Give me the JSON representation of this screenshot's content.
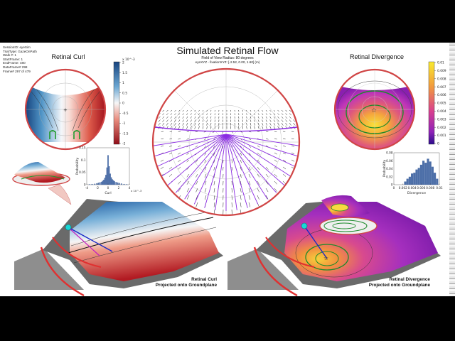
{
  "title": "Simulated Retinal Flow",
  "subtitle1": "Field of View Radius: 80 degrees",
  "subtitle2": "eyeXYZ - fixationXYZ: [-2.52, 0.00, 1.60] (m)",
  "meta": [
    "SessionID: eyeSim",
    "TrialType: GazeOnPath",
    "Walk #: 1",
    "StartFrame: 1",
    "EndFrame: 480",
    "DataFrame# 298",
    "Frame# 297 of 479"
  ],
  "curl_title": "Retinal Curl",
  "div_title": "Retinal Divergence",
  "curl_ground_label": [
    "Retinal Curl",
    "Projected onto Groundplane"
  ],
  "div_ground_label": [
    "Retinal Divergence",
    "Projected onto Groundplane"
  ],
  "colors": {
    "curl_neg": "#c0392b",
    "curl_pos": "#2166ac",
    "flow_vec": "#8a2be2",
    "div_low": "#4b0f8f",
    "div_high": "#f7e12f"
  },
  "chart_data": [
    {
      "type": "heatmap",
      "title": "Retinal Curl",
      "colorbar_exponent": "x 10^-3",
      "colorbar_ticks": [
        "2",
        "1.5",
        "1",
        "0.5",
        "0",
        "-0.5",
        "-1",
        "-1.5",
        "-2"
      ]
    },
    {
      "type": "bar",
      "title": "",
      "xlabel": "Curl",
      "ylabel": "Probability",
      "x_exponent": "x 10^-3",
      "x_ticks": [
        "-4",
        "-2",
        "0",
        "2",
        "4"
      ],
      "y_ticks": [
        "0.15",
        "0.1",
        "0.05",
        "0"
      ],
      "xlim": [
        -4,
        4
      ],
      "ylim": [
        0,
        0.15
      ],
      "x": [
        -3.5,
        -3.0,
        -2.5,
        -2.1,
        -1.8,
        -1.5,
        -1.2,
        -1.0,
        -0.8,
        -0.6,
        -0.4,
        -0.2,
        0.0,
        0.2,
        0.4,
        0.6,
        0.8,
        1.0,
        1.2,
        1.5,
        1.8,
        2.1,
        2.5,
        3.0,
        3.5
      ],
      "values": [
        0.002,
        0.003,
        0.004,
        0.006,
        0.008,
        0.01,
        0.012,
        0.016,
        0.02,
        0.028,
        0.04,
        0.07,
        0.12,
        0.075,
        0.045,
        0.03,
        0.022,
        0.018,
        0.014,
        0.011,
        0.009,
        0.007,
        0.005,
        0.003,
        0.002
      ]
    },
    {
      "type": "heatmap",
      "title": "Retinal Divergence",
      "colorbar_ticks": [
        "0.01",
        "0.009",
        "0.008",
        "0.007",
        "0.006",
        "0.005",
        "0.004",
        "0.003",
        "0.002",
        "0.001",
        "0"
      ]
    },
    {
      "type": "bar",
      "title": "",
      "xlabel": "Divergence",
      "ylabel": "Probability",
      "x_ticks": [
        "0",
        "0.002",
        "0.004",
        "0.006",
        "0.008",
        "0.01"
      ],
      "y_ticks": [
        "0.08",
        "0.06",
        "0.04",
        "0.02",
        "0"
      ],
      "xlim": [
        0,
        0.01
      ],
      "ylim": [
        0,
        0.08
      ],
      "x": [
        0.0025,
        0.003,
        0.0035,
        0.004,
        0.0045,
        0.005,
        0.0055,
        0.006,
        0.0065,
        0.007,
        0.0075,
        0.008,
        0.0085,
        0.009,
        0.0095
      ],
      "values": [
        0.008,
        0.015,
        0.02,
        0.028,
        0.03,
        0.038,
        0.042,
        0.05,
        0.06,
        0.055,
        0.065,
        0.058,
        0.045,
        0.03,
        0.015
      ]
    }
  ]
}
